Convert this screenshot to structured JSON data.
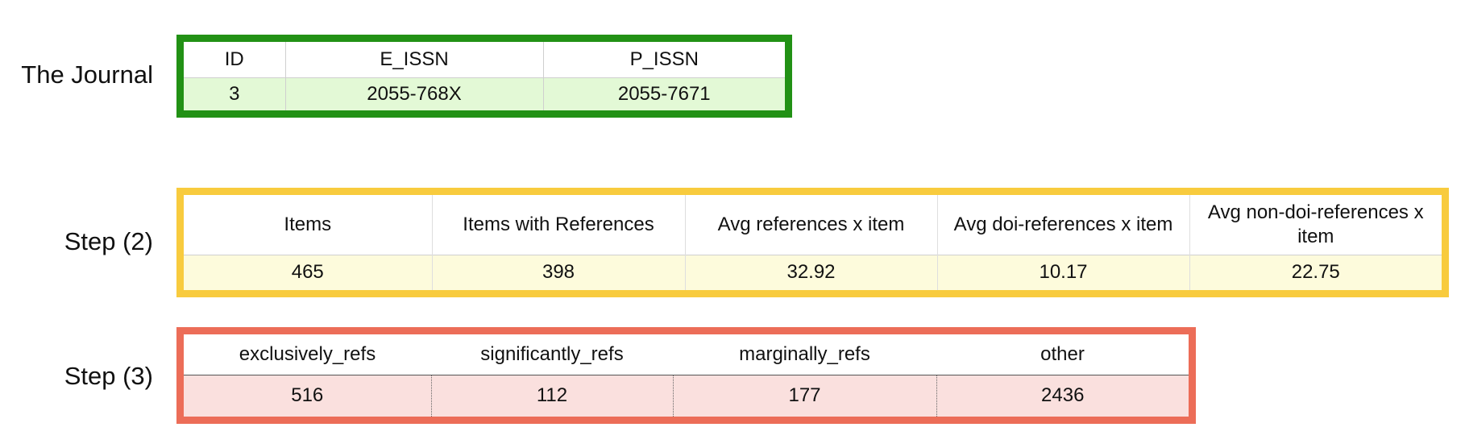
{
  "journal": {
    "label": "The Journal",
    "headers": [
      "ID",
      "E_ISSN",
      "P_ISSN"
    ],
    "values": [
      "3",
      "2055-768X",
      "2055-7671"
    ],
    "border_color": "#229115",
    "row_fill": "#e3f9d6"
  },
  "step2": {
    "label": "Step (2)",
    "headers": [
      "Items",
      "Items with References",
      "Avg references x item",
      "Avg doi-references x item",
      "Avg non-doi-references x item"
    ],
    "values": [
      "465",
      "398",
      "32.92",
      "10.17",
      "22.75"
    ],
    "border_color": "#f8cb3e",
    "row_fill": "#fdfbdc"
  },
  "step3": {
    "label": "Step (3)",
    "headers": [
      "exclusively_refs",
      "significantly_refs",
      "marginally_refs",
      "other"
    ],
    "values": [
      "516",
      "112",
      "177",
      "2436"
    ],
    "border_color": "#ec6d58",
    "row_fill": "#fae0de"
  }
}
